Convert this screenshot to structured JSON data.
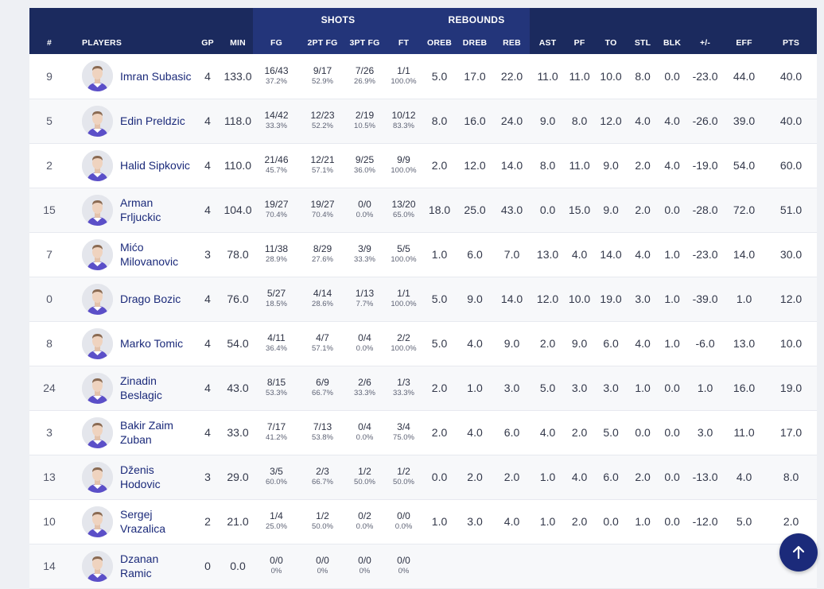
{
  "header": {
    "groups": {
      "shots": "SHOTS",
      "rebounds": "REBOUNDS"
    },
    "columns": [
      "#",
      "PLAYERS",
      "GP",
      "MIN",
      "FG",
      "2PT FG",
      "3PT FG",
      "FT",
      "OREB",
      "DREB",
      "REB",
      "AST",
      "PF",
      "TO",
      "STL",
      "BLK",
      "+/-",
      "EFF",
      "PTS"
    ]
  },
  "players": [
    {
      "no": "9",
      "name": "Imran Subasic",
      "gp": "4",
      "min": "133.0",
      "fg": "16/43",
      "fgp": "37.2%",
      "p2": "9/17",
      "p2p": "52.9%",
      "p3": "7/26",
      "p3p": "26.9%",
      "ft": "1/1",
      "ftp": "100.0%",
      "oreb": "5.0",
      "dreb": "17.0",
      "reb": "22.0",
      "ast": "11.0",
      "pf": "11.0",
      "to": "10.0",
      "stl": "8.0",
      "blk": "0.0",
      "pm": "-23.0",
      "eff": "44.0",
      "pts": "40.0"
    },
    {
      "no": "5",
      "name": "Edin Preldzic",
      "gp": "4",
      "min": "118.0",
      "fg": "14/42",
      "fgp": "33.3%",
      "p2": "12/23",
      "p2p": "52.2%",
      "p3": "2/19",
      "p3p": "10.5%",
      "ft": "10/12",
      "ftp": "83.3%",
      "oreb": "8.0",
      "dreb": "16.0",
      "reb": "24.0",
      "ast": "9.0",
      "pf": "8.0",
      "to": "12.0",
      "stl": "4.0",
      "blk": "4.0",
      "pm": "-26.0",
      "eff": "39.0",
      "pts": "40.0"
    },
    {
      "no": "2",
      "name": "Halid Sipkovic",
      "gp": "4",
      "min": "110.0",
      "fg": "21/46",
      "fgp": "45.7%",
      "p2": "12/21",
      "p2p": "57.1%",
      "p3": "9/25",
      "p3p": "36.0%",
      "ft": "9/9",
      "ftp": "100.0%",
      "oreb": "2.0",
      "dreb": "12.0",
      "reb": "14.0",
      "ast": "8.0",
      "pf": "11.0",
      "to": "9.0",
      "stl": "2.0",
      "blk": "4.0",
      "pm": "-19.0",
      "eff": "54.0",
      "pts": "60.0"
    },
    {
      "no": "15",
      "name": "Arman Frljuckic",
      "gp": "4",
      "min": "104.0",
      "fg": "19/27",
      "fgp": "70.4%",
      "p2": "19/27",
      "p2p": "70.4%",
      "p3": "0/0",
      "p3p": "0.0%",
      "ft": "13/20",
      "ftp": "65.0%",
      "oreb": "18.0",
      "dreb": "25.0",
      "reb": "43.0",
      "ast": "0.0",
      "pf": "15.0",
      "to": "9.0",
      "stl": "2.0",
      "blk": "0.0",
      "pm": "-28.0",
      "eff": "72.0",
      "pts": "51.0"
    },
    {
      "no": "7",
      "name": "Mićo Milovanovic",
      "gp": "3",
      "min": "78.0",
      "fg": "11/38",
      "fgp": "28.9%",
      "p2": "8/29",
      "p2p": "27.6%",
      "p3": "3/9",
      "p3p": "33.3%",
      "ft": "5/5",
      "ftp": "100.0%",
      "oreb": "1.0",
      "dreb": "6.0",
      "reb": "7.0",
      "ast": "13.0",
      "pf": "4.0",
      "to": "14.0",
      "stl": "4.0",
      "blk": "1.0",
      "pm": "-23.0",
      "eff": "14.0",
      "pts": "30.0"
    },
    {
      "no": "0",
      "name": "Drago Bozic",
      "gp": "4",
      "min": "76.0",
      "fg": "5/27",
      "fgp": "18.5%",
      "p2": "4/14",
      "p2p": "28.6%",
      "p3": "1/13",
      "p3p": "7.7%",
      "ft": "1/1",
      "ftp": "100.0%",
      "oreb": "5.0",
      "dreb": "9.0",
      "reb": "14.0",
      "ast": "12.0",
      "pf": "10.0",
      "to": "19.0",
      "stl": "3.0",
      "blk": "1.0",
      "pm": "-39.0",
      "eff": "1.0",
      "pts": "12.0"
    },
    {
      "no": "8",
      "name": "Marko Tomic",
      "gp": "4",
      "min": "54.0",
      "fg": "4/11",
      "fgp": "36.4%",
      "p2": "4/7",
      "p2p": "57.1%",
      "p3": "0/4",
      "p3p": "0.0%",
      "ft": "2/2",
      "ftp": "100.0%",
      "oreb": "5.0",
      "dreb": "4.0",
      "reb": "9.0",
      "ast": "2.0",
      "pf": "9.0",
      "to": "6.0",
      "stl": "4.0",
      "blk": "1.0",
      "pm": "-6.0",
      "eff": "13.0",
      "pts": "10.0"
    },
    {
      "no": "24",
      "name": "Zinadin Beslagic",
      "gp": "4",
      "min": "43.0",
      "fg": "8/15",
      "fgp": "53.3%",
      "p2": "6/9",
      "p2p": "66.7%",
      "p3": "2/6",
      "p3p": "33.3%",
      "ft": "1/3",
      "ftp": "33.3%",
      "oreb": "2.0",
      "dreb": "1.0",
      "reb": "3.0",
      "ast": "5.0",
      "pf": "3.0",
      "to": "3.0",
      "stl": "1.0",
      "blk": "0.0",
      "pm": "1.0",
      "eff": "16.0",
      "pts": "19.0"
    },
    {
      "no": "3",
      "name": "Bakir Zaim Zuban",
      "gp": "4",
      "min": "33.0",
      "fg": "7/17",
      "fgp": "41.2%",
      "p2": "7/13",
      "p2p": "53.8%",
      "p3": "0/4",
      "p3p": "0.0%",
      "ft": "3/4",
      "ftp": "75.0%",
      "oreb": "2.0",
      "dreb": "4.0",
      "reb": "6.0",
      "ast": "4.0",
      "pf": "2.0",
      "to": "5.0",
      "stl": "0.0",
      "blk": "0.0",
      "pm": "3.0",
      "eff": "11.0",
      "pts": "17.0"
    },
    {
      "no": "13",
      "name": "Dženis Hodovic",
      "gp": "3",
      "min": "29.0",
      "fg": "3/5",
      "fgp": "60.0%",
      "p2": "2/3",
      "p2p": "66.7%",
      "p3": "1/2",
      "p3p": "50.0%",
      "ft": "1/2",
      "ftp": "50.0%",
      "oreb": "0.0",
      "dreb": "2.0",
      "reb": "2.0",
      "ast": "1.0",
      "pf": "4.0",
      "to": "6.0",
      "stl": "2.0",
      "blk": "0.0",
      "pm": "-13.0",
      "eff": "4.0",
      "pts": "8.0"
    },
    {
      "no": "10",
      "name": "Sergej Vrazalica",
      "gp": "2",
      "min": "21.0",
      "fg": "1/4",
      "fgp": "25.0%",
      "p2": "1/2",
      "p2p": "50.0%",
      "p3": "0/2",
      "p3p": "0.0%",
      "ft": "0/0",
      "ftp": "0.0%",
      "oreb": "1.0",
      "dreb": "3.0",
      "reb": "4.0",
      "ast": "1.0",
      "pf": "2.0",
      "to": "0.0",
      "stl": "1.0",
      "blk": "0.0",
      "pm": "-12.0",
      "eff": "5.0",
      "pts": "2.0"
    },
    {
      "no": "14",
      "name": "Dzanan Ramic",
      "gp": "0",
      "min": "0.0",
      "fg": "0/0",
      "fgp": "0%",
      "p2": "0/0",
      "p2p": "0%",
      "p3": "0/0",
      "p3p": "0%",
      "ft": "0/0",
      "ftp": "0%",
      "oreb": "",
      "dreb": "",
      "reb": "",
      "ast": "",
      "pf": "",
      "to": "",
      "stl": "",
      "blk": "",
      "pm": "",
      "eff": "",
      "pts": ""
    }
  ],
  "icons": {
    "avatar": "player-avatar-icon",
    "scroll_top": "arrow-up-icon"
  },
  "colors": {
    "header_bg": "#1b2a5e",
    "name_link": "#1b2a7a",
    "button": "#1b2a7a"
  }
}
